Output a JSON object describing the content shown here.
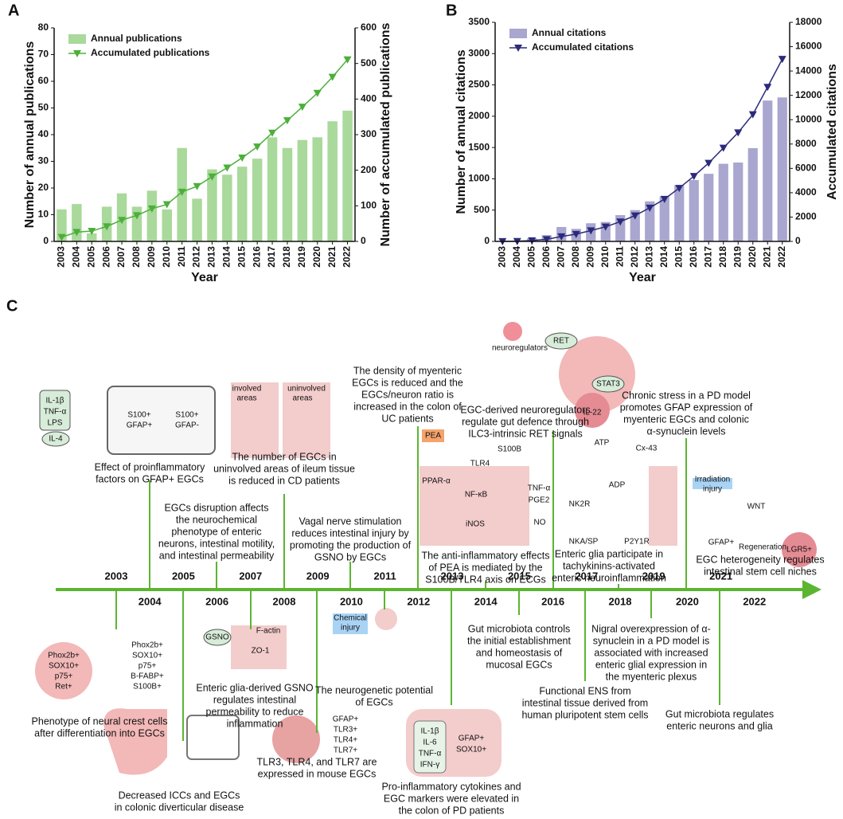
{
  "chart_data": [
    {
      "type": "bar",
      "panel_label": "A",
      "xlabel": "Year",
      "ylabel": "Number of annual publications",
      "y2label": "Number of accumulated publications",
      "categories": [
        2003,
        2004,
        2005,
        2006,
        2007,
        2008,
        2009,
        2010,
        2011,
        2012,
        2013,
        2014,
        2015,
        2016,
        2017,
        2018,
        2019,
        2020,
        2021,
        2022
      ],
      "series": [
        {
          "name": "Annual publications",
          "color": "#a9d99b",
          "values": [
            12,
            14,
            3,
            13,
            18,
            13,
            19,
            12,
            35,
            16,
            27,
            25,
            28,
            31,
            39,
            35,
            38,
            39,
            45,
            49
          ]
        },
        {
          "name": "Accumulated publications",
          "color": "#4caf3a",
          "type": "line",
          "axis": "y2",
          "values": [
            12,
            26,
            29,
            42,
            60,
            73,
            92,
            104,
            139,
            155,
            182,
            207,
            235,
            266,
            305,
            340,
            378,
            417,
            462,
            511
          ]
        }
      ],
      "ylim": [
        0,
        80
      ],
      "yticks": [
        0,
        10,
        20,
        30,
        40,
        50,
        60,
        70,
        80
      ],
      "y2lim": [
        0,
        600
      ],
      "y2ticks": [
        0,
        100,
        200,
        300,
        400,
        500,
        600
      ],
      "legend": "upper left"
    },
    {
      "type": "bar",
      "panel_label": "B",
      "xlabel": "Year",
      "ylabel": "Number of annual citations",
      "y2label": "Accumulated citations",
      "categories": [
        2003,
        2004,
        2005,
        2006,
        2007,
        2008,
        2009,
        2010,
        2011,
        2012,
        2013,
        2014,
        2015,
        2016,
        2017,
        2018,
        2019,
        2020,
        2021,
        2022
      ],
      "series": [
        {
          "name": "Annual citations",
          "color": "#a9a6cf",
          "values": [
            5,
            15,
            50,
            100,
            230,
            200,
            290,
            310,
            420,
            500,
            640,
            720,
            900,
            980,
            1080,
            1240,
            1260,
            1490,
            2250,
            2300
          ]
        },
        {
          "name": "Accumulated citations",
          "color": "#2b2a7a",
          "type": "line",
          "axis": "y2",
          "values": [
            5,
            20,
            70,
            170,
            400,
            600,
            890,
            1200,
            1620,
            2120,
            2760,
            3480,
            4380,
            5360,
            6440,
            7680,
            8940,
            10430,
            12680,
            14980
          ]
        }
      ],
      "ylim": [
        0,
        3500
      ],
      "yticks": [
        0,
        500,
        1000,
        1500,
        2000,
        2500,
        3000,
        3500
      ],
      "y2lim": [
        0,
        18000
      ],
      "y2ticks": [
        0,
        2000,
        4000,
        6000,
        8000,
        10000,
        12000,
        14000,
        16000,
        18000
      ],
      "legend": "upper left"
    }
  ],
  "timeline": {
    "panel_label": "C",
    "years": [
      2003,
      2004,
      2005,
      2006,
      2007,
      2008,
      2009,
      2010,
      2011,
      2012,
      2013,
      2014,
      2015,
      2016,
      2017,
      2018,
      2019,
      2020,
      2021,
      2022
    ],
    "events": [
      {
        "text_lines": [
          "Effect of proinflammatory",
          "factors on GFAP+ EGCs"
        ]
      },
      {
        "text_lines": [
          "EGCs disruption affects",
          "the neurochemical",
          "phenotype of enteric",
          "neurons, intestinal motility,",
          "and intestinal permeability"
        ]
      },
      {
        "text_lines": [
          "The number of EGCs in",
          "uninvolved areas of ileum tissue",
          "is reduced in CD patients"
        ]
      },
      {
        "text_lines": [
          "Vagal nerve stimulation",
          "reduces intestinal injury by",
          "promoting the production of",
          "GSNO by EGCs"
        ]
      },
      {
        "text_lines": [
          "The density of myenteric",
          "EGCs is reduced and the",
          "EGCs/neuron ratio is",
          "increased in the colon of",
          "UC patients"
        ]
      },
      {
        "text_lines": [
          "The anti-inflammatory effects",
          "of PEA is mediated by the",
          "S100B/TLR4 axis on ECGs"
        ]
      },
      {
        "text_lines": [
          "EGC-derived neuroregulators",
          "regulate gut defence through",
          "ILC3-intrinsic RET signals"
        ]
      },
      {
        "text_lines": [
          "Enteric glia participate in",
          "tachykinins-activated",
          "enteric neuroinflammation"
        ]
      },
      {
        "text_lines": [
          "Chronic stress in a PD model",
          "promotes GFAP expression of",
          "myenteric EGCs and colonic",
          "α-synuclein levels"
        ]
      },
      {
        "text_lines": [
          "EGC heterogeneity regulates",
          "intestinal stem cell niches"
        ]
      },
      {
        "text_lines": [
          "Phenotype of neural crest cells",
          "after differentiation into EGCs"
        ]
      },
      {
        "text_lines": [
          "Decreased ICCs and EGCs",
          "in colonic diverticular disease"
        ]
      },
      {
        "text_lines": [
          "Enteric glia-derived GSNO",
          "regulates intestinal",
          "permeability to reduce",
          "inflammation"
        ]
      },
      {
        "text_lines": [
          "TLR3, TLR4, and TLR7 are",
          "expressed in mouse EGCs"
        ]
      },
      {
        "text_lines": [
          "The neurogenetic potential",
          "of EGCs"
        ]
      },
      {
        "text_lines": [
          "Pro-inflammatory cytokines and",
          "EGC markers were elevated in",
          "the colon of PD patients"
        ]
      },
      {
        "text_lines": [
          "Gut microbiota controls",
          "the initial establishment",
          "and homeostasis of",
          "mucosal EGCs"
        ]
      },
      {
        "text_lines": [
          "Functional ENS from",
          "intestinal tissue derived from",
          "human pluripotent stem cells"
        ]
      },
      {
        "text_lines": [
          "Nigral overexpression of α-",
          "synuclein in a PD model is",
          "associated with increased",
          "enteric glial expression in",
          "the myenteric plexus"
        ]
      },
      {
        "text_lines": [
          "Gut microbiota regulates",
          "enteric neurons and glia"
        ]
      }
    ],
    "illustrations": [
      {
        "labels": [
          "IL-1β",
          "TNF-α",
          "LPS",
          "IL-4",
          "S100+",
          "GFAP+",
          "S100+",
          "GFAP-"
        ]
      },
      {
        "labels": [
          "involved",
          "areas",
          "uninvolved",
          "areas"
        ]
      },
      {
        "labels": [
          "neuroregulators",
          "RET",
          "STAT3",
          "IL-22"
        ]
      },
      {
        "labels": [
          "PEA",
          "S100B",
          "TLR4",
          "PPAR-α",
          "NF-κB",
          "TNF-α",
          "PGE2",
          "iNOS",
          "NO"
        ]
      },
      {
        "labels": [
          "ATP",
          "Cx-43",
          "NK2R",
          "ADP",
          "P2Y1R",
          "NKA/SP"
        ]
      },
      {
        "labels": [
          "Irradiation",
          "injury",
          "GFAP+",
          "WNT",
          "Regeneration",
          "LGR5+"
        ]
      },
      {
        "labels": [
          "Phox2b+",
          "SOX10+",
          "p75+",
          "Ret+"
        ]
      },
      {
        "labels": [
          "Phox2b+",
          "SOX10+",
          "p75+",
          "B-FABP+",
          "S100B+"
        ]
      },
      {
        "labels": [
          "GSNO",
          "F-actin",
          "ZO-1"
        ]
      },
      {
        "labels": [
          "Chemical",
          "injury"
        ]
      },
      {
        "labels": [
          "GFAP+",
          "TLR3+",
          "TLR4+",
          "TLR7+"
        ]
      },
      {
        "labels": [
          "IL-1β",
          "IL-6",
          "TNF-α",
          "IFN-γ",
          "GFAP+",
          "SOX10+"
        ]
      }
    ]
  }
}
